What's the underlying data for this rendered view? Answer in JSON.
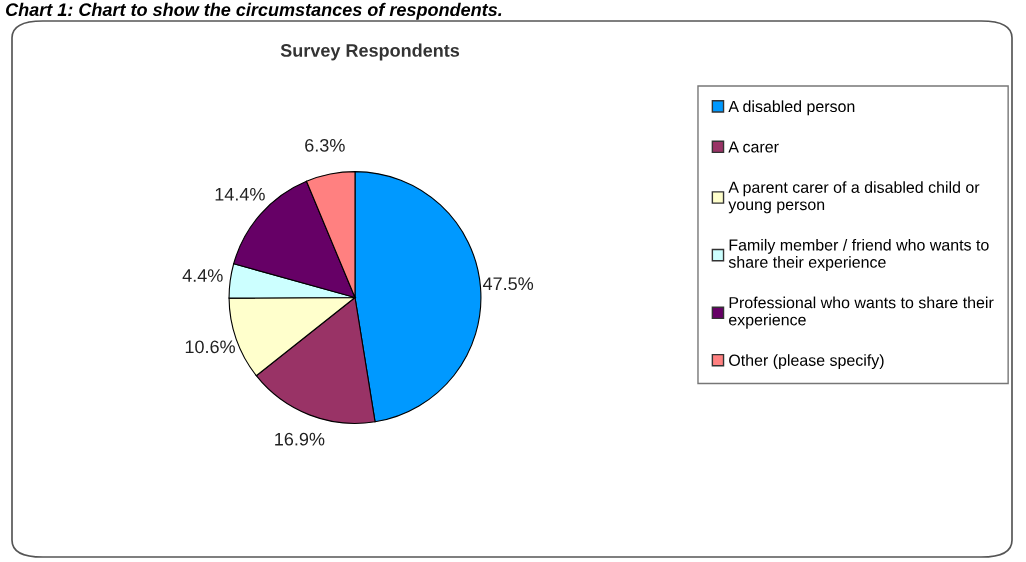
{
  "chart_data": {
    "type": "pie",
    "title": "Survey Respondents",
    "annotations": [
      "Chart 1: Chart to show the circumstances of respondents."
    ],
    "categories": [
      "A disabled person",
      "A carer",
      "A parent carer of a disabled child or\nyoung person",
      "Family member / friend who wants to\nshare their experience",
      "Professional who wants to share their\nexperience",
      "Other (please specify)"
    ],
    "values": [
      47.5,
      16.9,
      10.6,
      4.4,
      14.4,
      6.3
    ],
    "value_labels": [
      "47.5%",
      "16.9%",
      "10.6%",
      "4.4%",
      "14.4%",
      "6.3%"
    ],
    "colors": [
      "#0099ff",
      "#993366",
      "#ffffcc",
      "#ccffff",
      "#660066",
      "#ff8080"
    ],
    "legend": "right"
  }
}
